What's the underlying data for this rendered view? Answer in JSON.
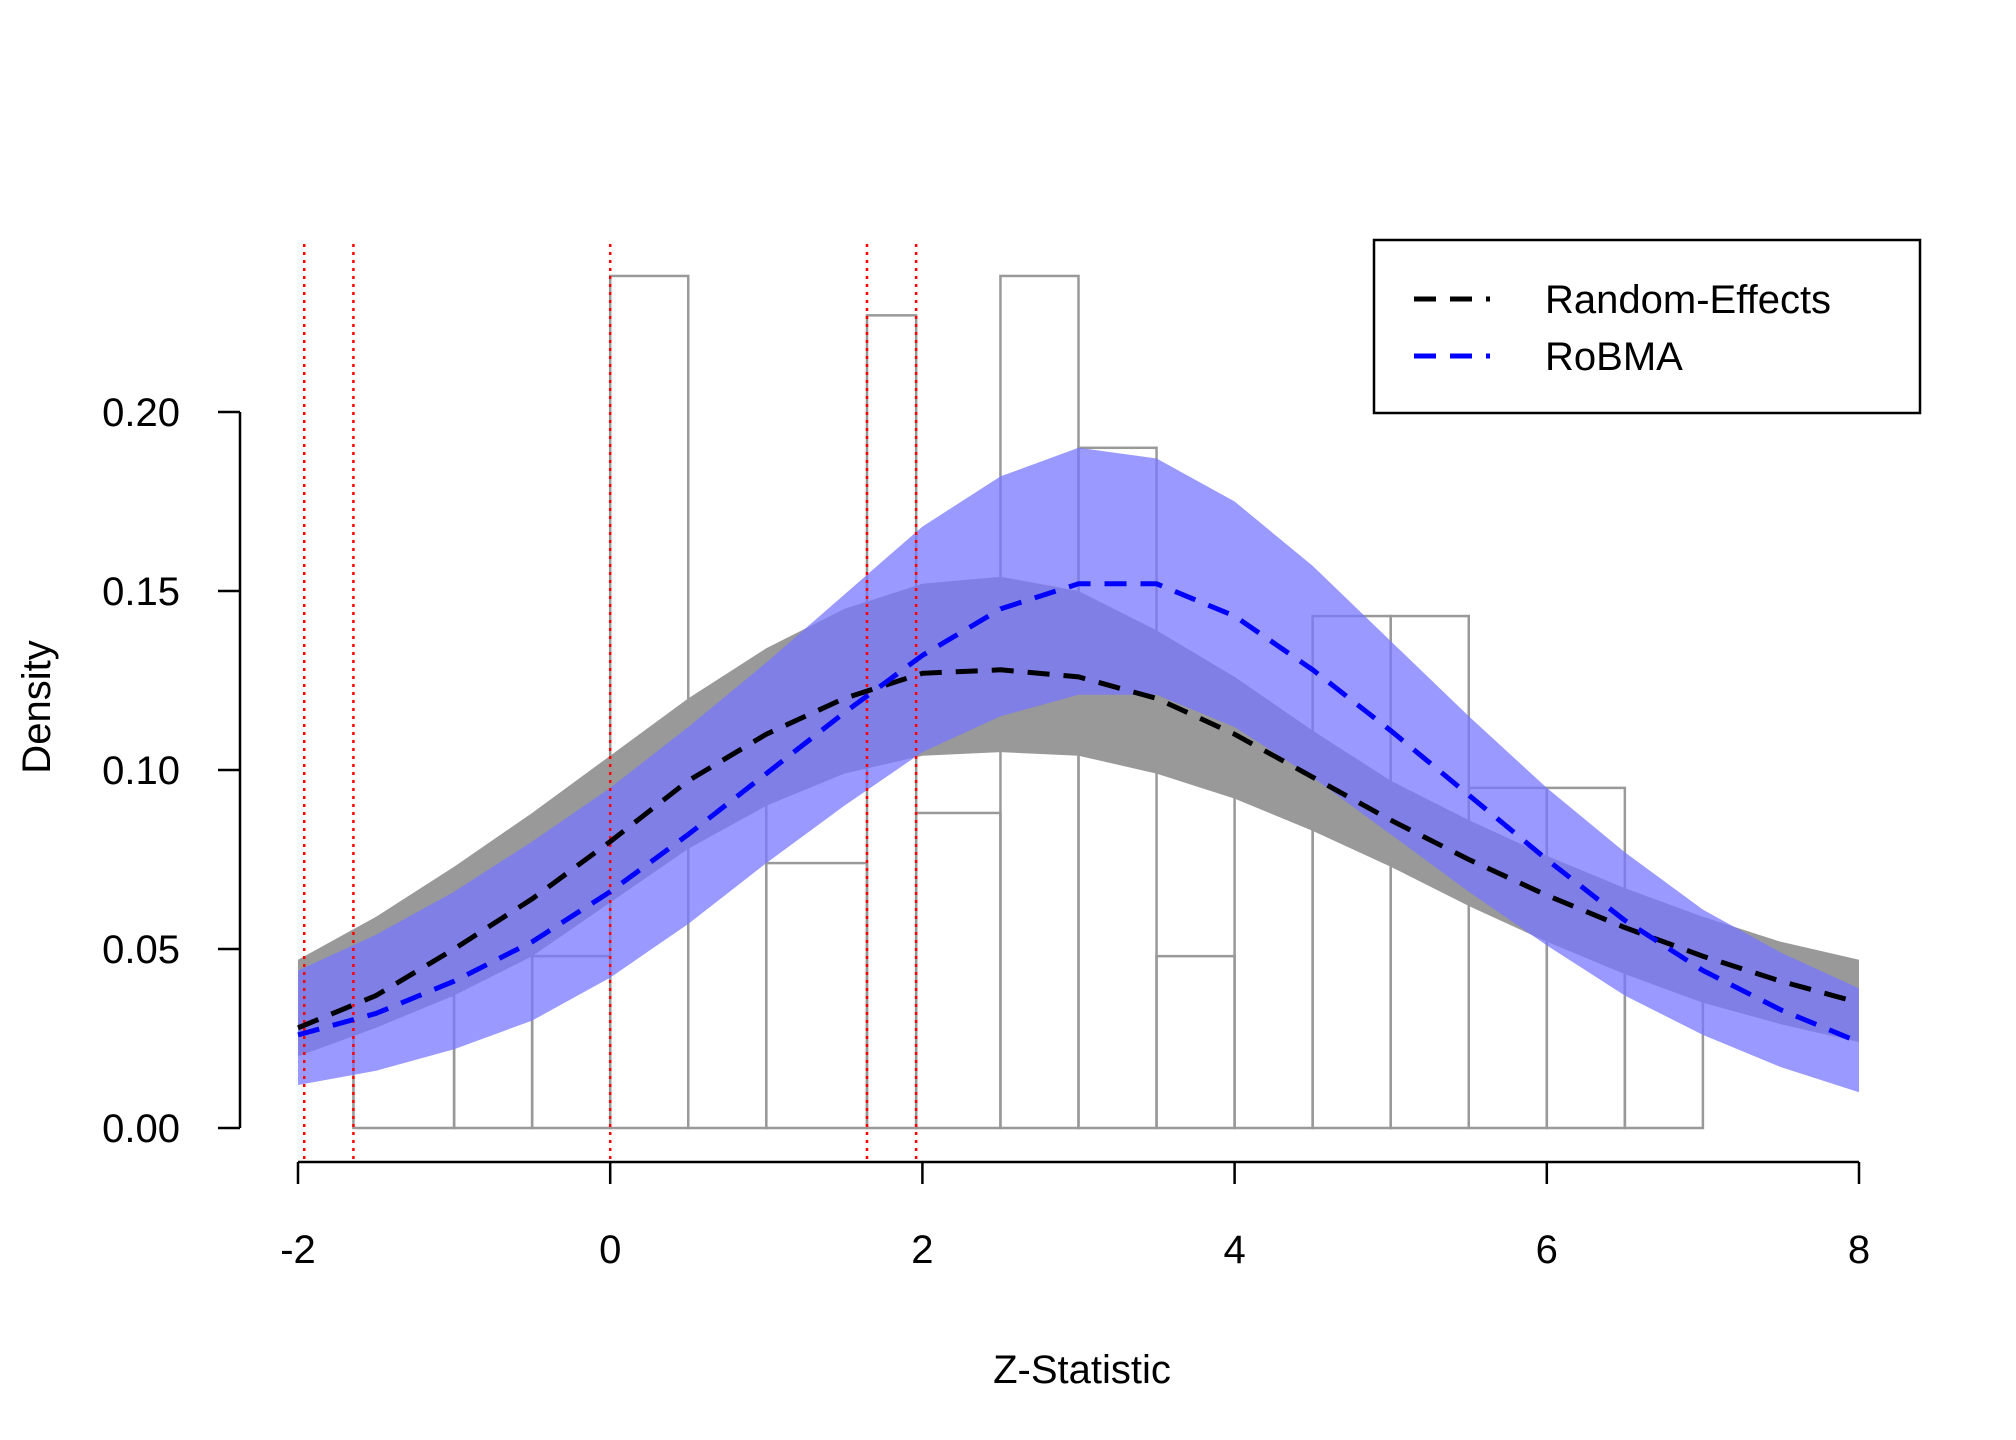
{
  "chart_data": {
    "type": "histogram-density",
    "xlabel": "Z-Statistic",
    "ylabel": "Density",
    "xlim": [
      -2,
      8
    ],
    "ylim": [
      0,
      0.24
    ],
    "x_ticks": [
      {
        "value": -2,
        "label": "-2"
      },
      {
        "value": 0,
        "label": "0"
      },
      {
        "value": 2,
        "label": "2"
      },
      {
        "value": 4,
        "label": "4"
      },
      {
        "value": 6,
        "label": "6"
      },
      {
        "value": 8,
        "label": "8"
      }
    ],
    "y_ticks": [
      {
        "value": 0.0,
        "label": "0.00"
      },
      {
        "value": 0.05,
        "label": "0.05"
      },
      {
        "value": 0.1,
        "label": "0.10"
      },
      {
        "value": 0.15,
        "label": "0.15"
      },
      {
        "value": 0.2,
        "label": "0.20"
      }
    ],
    "histogram": {
      "color": "#999999",
      "bins": [
        {
          "x0": -2.0,
          "x1": -1.645,
          "density": 0.0
        },
        {
          "x0": -1.645,
          "x1": -1.0,
          "density": 0.037
        },
        {
          "x0": -1.0,
          "x1": -0.5,
          "density": 0.048
        },
        {
          "x0": -0.5,
          "x1": 0.0,
          "density": 0.048
        },
        {
          "x0": 0.0,
          "x1": 0.5,
          "density": 0.238
        },
        {
          "x0": 0.5,
          "x1": 1.0,
          "density": 0.095
        },
        {
          "x0": 1.0,
          "x1": 1.645,
          "density": 0.074
        },
        {
          "x0": 1.645,
          "x1": 1.96,
          "density": 0.227
        },
        {
          "x0": 1.96,
          "x1": 2.5,
          "density": 0.088
        },
        {
          "x0": 2.5,
          "x1": 3.0,
          "density": 0.238
        },
        {
          "x0": 3.0,
          "x1": 3.5,
          "density": 0.19
        },
        {
          "x0": 3.5,
          "x1": 4.0,
          "density": 0.048
        },
        {
          "x0": 4.0,
          "x1": 4.5,
          "density": 0.095
        },
        {
          "x0": 4.5,
          "x1": 5.0,
          "density": 0.143
        },
        {
          "x0": 5.0,
          "x1": 5.5,
          "density": 0.143
        },
        {
          "x0": 5.5,
          "x1": 6.0,
          "density": 0.095
        },
        {
          "x0": 6.0,
          "x1": 6.5,
          "density": 0.095
        },
        {
          "x0": 6.5,
          "x1": 7.0,
          "density": 0.048
        },
        {
          "x0": 7.0,
          "x1": 8.0,
          "density": 0.0
        }
      ]
    },
    "reference_lines": {
      "color": "#ff0000",
      "style": "dotted",
      "x": [
        -1.96,
        -1.645,
        0,
        1.645,
        1.96
      ]
    },
    "series": [
      {
        "name": "Random-Effects",
        "line_color": "#000000",
        "band_color": "#999999",
        "x": [
          -2,
          -1.5,
          -1,
          -0.5,
          0,
          0.5,
          1,
          1.5,
          2,
          2.5,
          3,
          3.5,
          4,
          4.5,
          5,
          5.5,
          6,
          6.5,
          7,
          7.5,
          8
        ],
        "mean": [
          0.028,
          0.037,
          0.05,
          0.064,
          0.08,
          0.097,
          0.11,
          0.12,
          0.127,
          0.128,
          0.126,
          0.12,
          0.11,
          0.098,
          0.086,
          0.075,
          0.065,
          0.056,
          0.048,
          0.041,
          0.035
        ],
        "lower": [
          0.02,
          0.028,
          0.037,
          0.048,
          0.063,
          0.078,
          0.09,
          0.099,
          0.104,
          0.105,
          0.104,
          0.099,
          0.092,
          0.083,
          0.073,
          0.062,
          0.052,
          0.043,
          0.035,
          0.029,
          0.024
        ],
        "upper": [
          0.047,
          0.059,
          0.073,
          0.088,
          0.104,
          0.12,
          0.134,
          0.145,
          0.152,
          0.154,
          0.15,
          0.139,
          0.126,
          0.111,
          0.097,
          0.086,
          0.076,
          0.067,
          0.059,
          0.052,
          0.047
        ]
      },
      {
        "name": "RoBMA",
        "line_color": "#0000ff",
        "band_color": "#7777ff",
        "x": [
          -2,
          -1.5,
          -1,
          -0.5,
          0,
          0.5,
          1,
          1.5,
          2,
          2.5,
          3,
          3.5,
          4,
          4.5,
          5,
          5.5,
          6,
          6.5,
          7,
          7.5,
          8
        ],
        "mean": [
          0.026,
          0.032,
          0.041,
          0.052,
          0.066,
          0.082,
          0.099,
          0.116,
          0.132,
          0.145,
          0.152,
          0.152,
          0.143,
          0.128,
          0.111,
          0.093,
          0.075,
          0.058,
          0.044,
          0.033,
          0.024
        ],
        "lower": [
          0.012,
          0.016,
          0.022,
          0.03,
          0.042,
          0.057,
          0.074,
          0.09,
          0.105,
          0.115,
          0.121,
          0.121,
          0.112,
          0.098,
          0.082,
          0.066,
          0.051,
          0.037,
          0.026,
          0.017,
          0.01
        ],
        "upper": [
          0.044,
          0.054,
          0.066,
          0.08,
          0.095,
          0.112,
          0.13,
          0.149,
          0.168,
          0.182,
          0.19,
          0.187,
          0.175,
          0.157,
          0.136,
          0.115,
          0.095,
          0.077,
          0.061,
          0.049,
          0.039
        ]
      }
    ],
    "legend": {
      "placement": "top-right",
      "entries": [
        {
          "label": "Random-Effects",
          "color": "#000000",
          "style": "dashed"
        },
        {
          "label": "RoBMA",
          "color": "#0000ff",
          "style": "dashed"
        }
      ]
    }
  }
}
